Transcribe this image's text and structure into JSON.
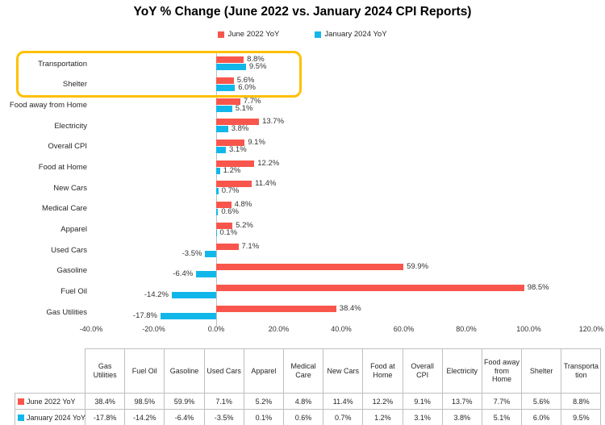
{
  "chart_data": {
    "type": "bar",
    "orientation": "horizontal",
    "title": "YoY % Change (June 2022 vs. January 2024 CPI Reports)",
    "categories": [
      "Transportation",
      "Shelter",
      "Food away from Home",
      "Electricity",
      "Overall CPI",
      "Food at Home",
      "New Cars",
      "Medical Care",
      "Apparel",
      "Used Cars",
      "Gasoline",
      "Fuel Oil",
      "Gas Utilities"
    ],
    "series": [
      {
        "name": "June 2022 YoY",
        "color": "#F8564C",
        "values": [
          8.8,
          5.6,
          7.7,
          13.7,
          9.1,
          12.2,
          11.4,
          4.8,
          5.2,
          7.1,
          59.9,
          98.5,
          38.4
        ]
      },
      {
        "name": "January 2024 YoY",
        "color": "#12B7EA",
        "values": [
          9.5,
          6.0,
          5.1,
          3.8,
          3.1,
          1.2,
          0.7,
          0.6,
          0.1,
          -3.5,
          -6.4,
          -14.2,
          -17.8
        ]
      }
    ],
    "x_ticks": [
      "-40.0%",
      "-20.0%",
      "0.0%",
      "20.0%",
      "40.0%",
      "60.0%",
      "80.0%",
      "100.0%",
      "120.0%"
    ],
    "xlim": [
      -40,
      120
    ],
    "value_suffix": "%",
    "grid": false,
    "legend_position": "top",
    "highlight_box": {
      "rows": [
        "Transportation",
        "Shelter"
      ],
      "color": "#FFC000"
    }
  },
  "legend": [
    {
      "label": "June 2022 YoY",
      "color": "#F8564C"
    },
    {
      "label": "January 2024 YoY",
      "color": "#12B7EA"
    }
  ],
  "colors": {
    "june_series": "#F8564C",
    "january_series": "#12B7EA",
    "highlight": "#FFC000",
    "axis_and_borders": "#BFBFBF"
  },
  "table": {
    "columns": [
      "Gas Utilities",
      "Fuel Oil",
      "Gasoline",
      "Used Cars",
      "Apparel",
      "Medical Care",
      "New Cars",
      "Food at Home",
      "Overall CPI",
      "Electricity",
      "Food away from Home",
      "Shelter",
      "Transportation"
    ],
    "rows": [
      {
        "label": "June 2022 YoY",
        "swatch_color": "#F8564C",
        "values": [
          "38.4%",
          "98.5%",
          "59.9%",
          "7.1%",
          "5.2%",
          "4.8%",
          "11.4%",
          "12.2%",
          "9.1%",
          "13.7%",
          "7.7%",
          "5.6%",
          "8.8%"
        ]
      },
      {
        "label": "January 2024 YoY",
        "swatch_color": "#12B7EA",
        "values": [
          "-17.8%",
          "-14.2%",
          "-6.4%",
          "-3.5%",
          "0.1%",
          "0.6%",
          "0.7%",
          "1.2%",
          "3.1%",
          "3.8%",
          "5.1%",
          "6.0%",
          "9.5%"
        ]
      }
    ]
  }
}
